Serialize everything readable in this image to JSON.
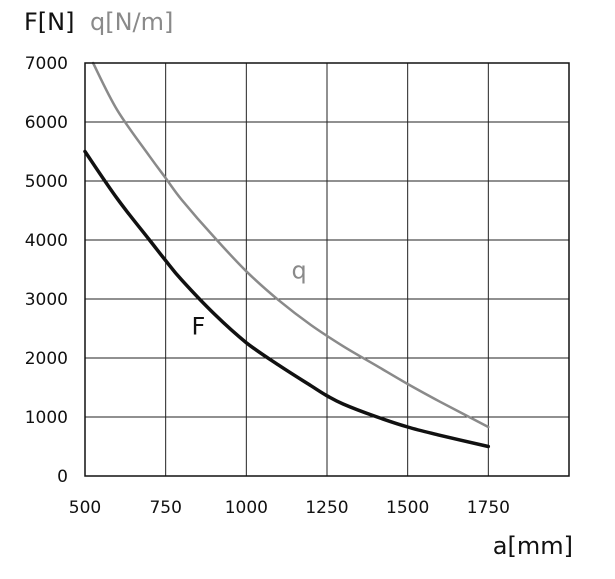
{
  "chart_data": {
    "type": "line",
    "y_titles": [
      {
        "text": "F[N]",
        "color": "#111111"
      },
      {
        "text": "q[N/m]",
        "color": "#8a8a8a"
      }
    ],
    "xlabel": "a[mm]",
    "xlim": [
      500,
      2000
    ],
    "ylim": [
      0,
      7000
    ],
    "x_ticks": [
      {
        "value": 500,
        "label": "500"
      },
      {
        "value": 750,
        "label": "750"
      },
      {
        "value": 1000,
        "label": "1000"
      },
      {
        "value": 1250,
        "label": "1250"
      },
      {
        "value": 1500,
        "label": "1500"
      },
      {
        "value": 1750,
        "label": "1750"
      }
    ],
    "y_ticks": [
      {
        "value": 0,
        "label": "0"
      },
      {
        "value": 1000,
        "label": "1000"
      },
      {
        "value": 2000,
        "label": "2000"
      },
      {
        "value": 3000,
        "label": "3000"
      },
      {
        "value": 4000,
        "label": "4000"
      },
      {
        "value": 5000,
        "label": "5000"
      },
      {
        "value": 6000,
        "label": "6000"
      },
      {
        "value": 7000,
        "label": "7000"
      }
    ],
    "grid": true,
    "series": [
      {
        "name": "q",
        "color": "#8a8a8a",
        "x": [
          525,
          600,
          700,
          750,
          800,
          900,
          1000,
          1100,
          1200,
          1300,
          1400,
          1500,
          1600,
          1750
        ],
        "y": [
          7000,
          6200,
          5420,
          5050,
          4680,
          4050,
          3470,
          2980,
          2560,
          2200,
          1880,
          1560,
          1260,
          830
        ]
      },
      {
        "name": "F",
        "color": "#111111",
        "x": [
          500,
          600,
          700,
          750,
          800,
          900,
          1000,
          1100,
          1200,
          1250,
          1300,
          1400,
          1500,
          1600,
          1750
        ],
        "y": [
          5500,
          4700,
          4000,
          3650,
          3320,
          2750,
          2260,
          1880,
          1530,
          1360,
          1220,
          1010,
          830,
          690,
          500
        ]
      }
    ],
    "series_label_values": [
      {
        "series": "q",
        "x": 1140,
        "y": 3350
      },
      {
        "series": "F",
        "x": 830,
        "y": 2400
      }
    ]
  }
}
